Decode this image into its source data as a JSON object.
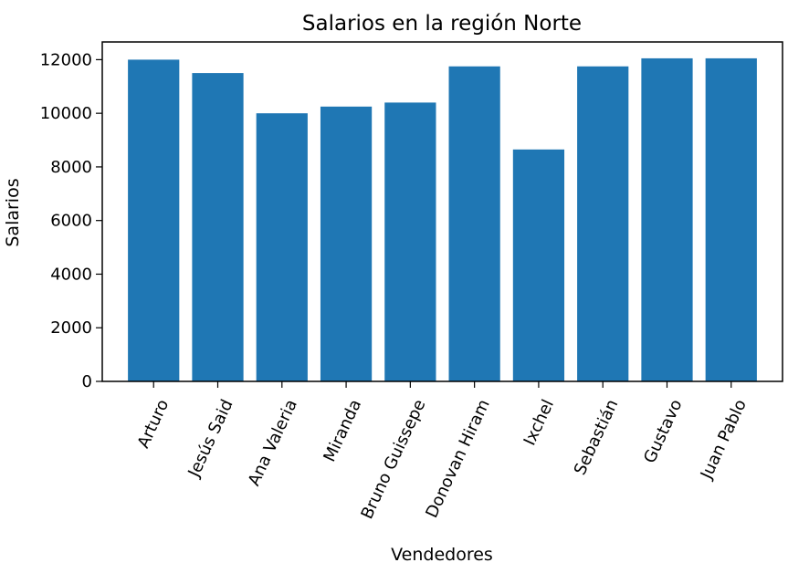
{
  "chart_data": {
    "type": "bar",
    "title": "Salarios en la región Norte",
    "xlabel": "Vendedores",
    "ylabel": "Salarios",
    "categories": [
      "Arturo",
      "Jesús Said",
      "Ana Valeria",
      "Miranda",
      "Bruno Guissepe",
      "Donovan Hiram",
      "Ixchel",
      "Sebastián",
      "Gustavo",
      "Juan Pablo"
    ],
    "values": [
      12000,
      11500,
      10000,
      10250,
      10400,
      11750,
      8650,
      11750,
      12050,
      12050
    ],
    "yticks": [
      0,
      2000,
      4000,
      6000,
      8000,
      10000,
      12000
    ],
    "ylim": [
      0,
      12660
    ],
    "grid": false,
    "bar_color": "#1f77b4"
  }
}
